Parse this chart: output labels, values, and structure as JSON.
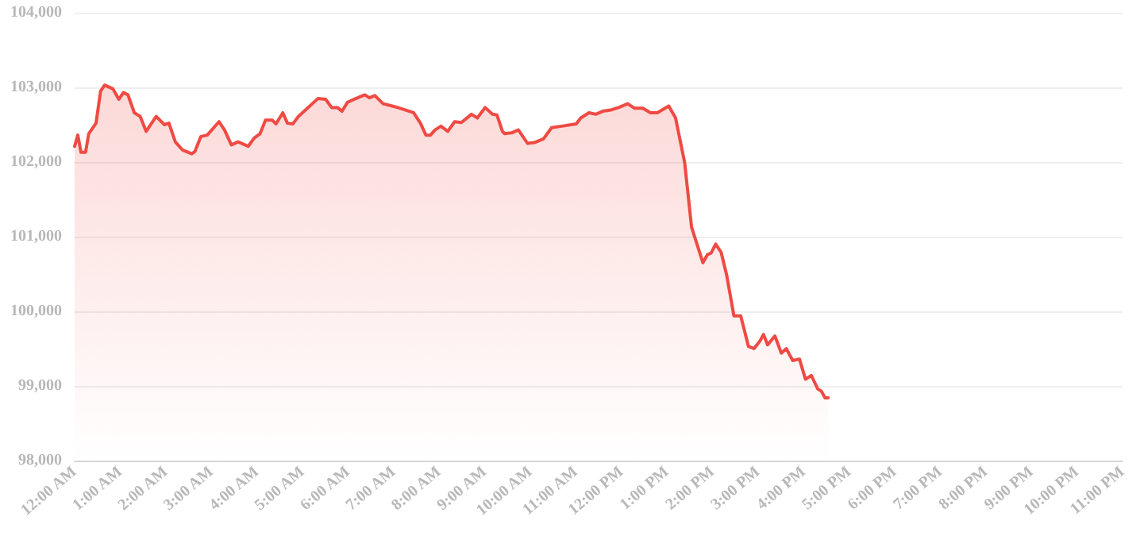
{
  "chart_data": {
    "type": "area",
    "grid": "y",
    "marker": "none",
    "line_style": "solid",
    "xlim": [
      0,
      23
    ],
    "xticks": [
      {
        "value": 0,
        "label": "12:00 AM"
      },
      {
        "value": 1,
        "label": "1:00 AM"
      },
      {
        "value": 2,
        "label": "2:00 AM"
      },
      {
        "value": 3,
        "label": "3:00 AM"
      },
      {
        "value": 4,
        "label": "4:00 AM"
      },
      {
        "value": 5,
        "label": "5:00 AM"
      },
      {
        "value": 6,
        "label": "6:00 AM"
      },
      {
        "value": 7,
        "label": "7:00 AM"
      },
      {
        "value": 8,
        "label": "8:00 AM"
      },
      {
        "value": 9,
        "label": "9:00 AM"
      },
      {
        "value": 10,
        "label": "10:00 AM"
      },
      {
        "value": 11,
        "label": "11:00 AM"
      },
      {
        "value": 12,
        "label": "12:00 PM"
      },
      {
        "value": 13,
        "label": "1:00 PM"
      },
      {
        "value": 14,
        "label": "2:00 PM"
      },
      {
        "value": 15,
        "label": "3:00 PM"
      },
      {
        "value": 16,
        "label": "4:00 PM"
      },
      {
        "value": 17,
        "label": "5:00 PM"
      },
      {
        "value": 18,
        "label": "6:00 PM"
      },
      {
        "value": 19,
        "label": "7:00 PM"
      },
      {
        "value": 20,
        "label": "8:00 PM"
      },
      {
        "value": 21,
        "label": "9:00 PM"
      },
      {
        "value": 22,
        "label": "10:00 PM"
      },
      {
        "value": 23,
        "label": "11:00 PM"
      }
    ],
    "ylim": [
      98000,
      104000
    ],
    "yticks": [
      {
        "value": 98000,
        "label": "98,000"
      },
      {
        "value": 99000,
        "label": "99,000"
      },
      {
        "value": 100000,
        "label": "100,000"
      },
      {
        "value": 101000,
        "label": "101,000"
      },
      {
        "value": 102000,
        "label": "102,000"
      },
      {
        "value": 103000,
        "label": "103,000"
      },
      {
        "value": 104000,
        "label": "104,000"
      }
    ],
    "series": [
      {
        "color": "#ef4a43",
        "x": [
          0,
          0.07,
          0.14,
          0.24,
          0.31,
          0.47,
          0.57,
          0.66,
          0.84,
          0.97,
          1.07,
          1.17,
          1.31,
          1.44,
          1.57,
          1.79,
          1.97,
          2.07,
          2.21,
          2.37,
          2.57,
          2.64,
          2.77,
          2.91,
          3.17,
          3.29,
          3.44,
          3.59,
          3.81,
          3.94,
          4.07,
          4.19,
          4.34,
          4.42,
          4.57,
          4.67,
          4.79,
          4.91,
          5.11,
          5.34,
          5.51,
          5.64,
          5.77,
          5.87,
          5.99,
          6.17,
          6.37,
          6.47,
          6.59,
          6.77,
          6.97,
          7.09,
          7.24,
          7.44,
          7.59,
          7.71,
          7.81,
          7.91,
          8.04,
          8.19,
          8.34,
          8.49,
          8.71,
          8.84,
          9.01,
          9.17,
          9.27,
          9.39,
          9.44,
          9.59,
          9.74,
          9.94,
          10.09,
          10.29,
          10.47,
          10.69,
          11.01,
          11.11,
          11.29,
          11.44,
          11.59,
          11.79,
          11.94,
          12.14,
          12.29,
          12.47,
          12.64,
          12.79,
          13.04,
          13.19,
          13.39,
          13.54,
          13.79,
          13.89,
          13.97,
          14.07,
          14.19,
          14.31,
          14.47,
          14.62,
          14.79,
          14.91,
          15.04,
          15.12,
          15.21,
          15.37,
          15.51,
          15.62,
          15.76,
          15.91,
          16.04,
          16.17,
          16.31,
          16.39,
          16.47,
          16.54
        ],
        "values": [
          102210,
          102360,
          102130,
          102130,
          102380,
          102520,
          102950,
          103030,
          102980,
          102840,
          102930,
          102900,
          102660,
          102610,
          102410,
          102610,
          102500,
          102520,
          102270,
          102160,
          102110,
          102140,
          102340,
          102360,
          102540,
          102430,
          102230,
          102270,
          102210,
          102320,
          102380,
          102560,
          102560,
          102510,
          102660,
          102520,
          102510,
          102610,
          102720,
          102850,
          102840,
          102730,
          102730,
          102680,
          102800,
          102850,
          102900,
          102860,
          102890,
          102780,
          102750,
          102730,
          102700,
          102660,
          102520,
          102360,
          102360,
          102430,
          102480,
          102410,
          102540,
          102530,
          102640,
          102590,
          102730,
          102640,
          102630,
          102410,
          102380,
          102390,
          102430,
          102250,
          102260,
          102310,
          102460,
          102480,
          102510,
          102590,
          102660,
          102640,
          102680,
          102700,
          102730,
          102780,
          102720,
          102720,
          102660,
          102660,
          102750,
          102590,
          101990,
          101130,
          100650,
          100760,
          100780,
          100900,
          100790,
          100490,
          99940,
          99940,
          99530,
          99500,
          99600,
          99690,
          99550,
          99670,
          99440,
          99500,
          99340,
          99360,
          99090,
          99140,
          98960,
          98930,
          98840,
          98840
        ]
      }
    ]
  }
}
